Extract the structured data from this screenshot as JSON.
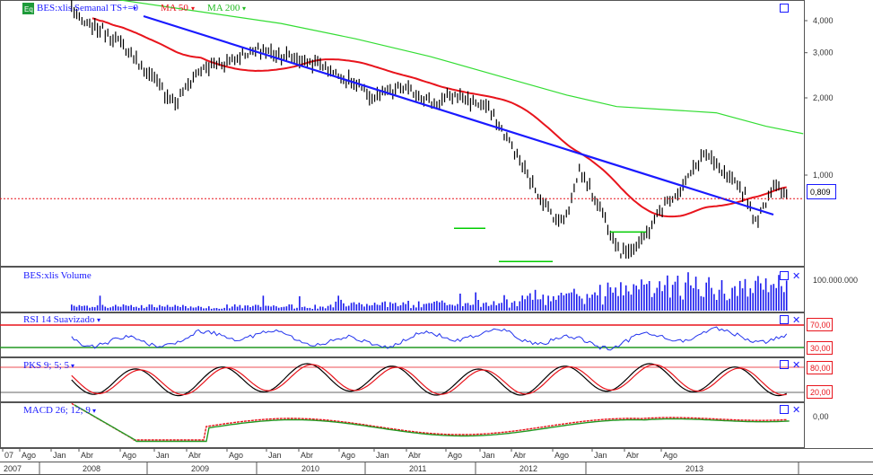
{
  "badge": {
    "label": "Eq"
  },
  "main_panel": {
    "title": "BES:xlis Semanal TS+=0",
    "ma50_label": "MA 50",
    "ma200_label": "MA 200",
    "current_price_label": "0,809",
    "y_ticks": [
      "4,000",
      "3,000",
      "2,000",
      "1,000"
    ]
  },
  "volume_panel": {
    "title": "BES:xlis Volume",
    "y_tick": "100.000.000"
  },
  "rsi_panel": {
    "title": "RSI 14 Suavizado",
    "upper_level_label": "70,00",
    "lower_level_label": "30,00"
  },
  "pks_panel": {
    "title": "PKS 9; 5; 5",
    "upper_level_label": "80,00",
    "lower_level_label": "20,00"
  },
  "macd_panel": {
    "title": "MACD 26; 12; 9",
    "zero_label": "0,00"
  },
  "time_axis": {
    "month_labels": [
      "07",
      "Ago",
      "Jan",
      "Abr",
      "Ago",
      "Jan",
      "Abr",
      "Ago",
      "Jan",
      "Abr",
      "Ago",
      "Jan",
      "Abr",
      "Ago",
      "Jan",
      "Abr",
      "Ago",
      "Jan",
      "Abr",
      "Ago"
    ],
    "year_labels": [
      "2007",
      "2008",
      "2009",
      "2010",
      "2011",
      "2012",
      "2013"
    ]
  },
  "colors": {
    "price": "#000000",
    "ma50": "#e8141c",
    "ma200": "#33dd33",
    "trendline": "#1a1aff",
    "volume": "#1a1aee",
    "rsi": "#2233ee",
    "support": "#00cc00",
    "level_red": "#e8141c",
    "pks_fast": "#000000",
    "pks_slow": "#e8141c",
    "macd_a": "#e8141c",
    "macd_b": "#229922",
    "panel_button": "#1a1aff"
  },
  "chart_data": {
    "type": "line",
    "title": "BES:xlis Semanal",
    "y_scale": "log",
    "ylim": [
      0.45,
      5.0
    ],
    "x_range": [
      "2007-07",
      "2013-12"
    ],
    "price_keypoints": [
      {
        "x": "2007-12",
        "y": 4.6
      },
      {
        "x": "2008-01",
        "y": 3.9
      },
      {
        "x": "2008-03",
        "y": 3.7
      },
      {
        "x": "2008-05",
        "y": 3.2
      },
      {
        "x": "2008-10",
        "y": 1.9
      },
      {
        "x": "2008-12",
        "y": 2.5
      },
      {
        "x": "2009-03",
        "y": 2.8
      },
      {
        "x": "2009-06",
        "y": 3.1
      },
      {
        "x": "2009-09",
        "y": 2.9
      },
      {
        "x": "2009-12",
        "y": 2.7
      },
      {
        "x": "2010-03",
        "y": 2.3
      },
      {
        "x": "2010-05",
        "y": 2.0
      },
      {
        "x": "2010-08",
        "y": 2.2
      },
      {
        "x": "2010-11",
        "y": 1.9
      },
      {
        "x": "2011-01",
        "y": 2.05
      },
      {
        "x": "2011-04",
        "y": 1.85
      },
      {
        "x": "2011-06",
        "y": 1.4
      },
      {
        "x": "2011-09",
        "y": 0.85
      },
      {
        "x": "2011-11",
        "y": 0.65
      },
      {
        "x": "2011-12",
        "y": 0.75
      },
      {
        "x": "2012-01",
        "y": 1.05
      },
      {
        "x": "2012-03",
        "y": 0.75
      },
      {
        "x": "2012-05",
        "y": 0.5
      },
      {
        "x": "2012-07",
        "y": 0.55
      },
      {
        "x": "2012-09",
        "y": 0.75
      },
      {
        "x": "2012-11",
        "y": 0.9
      },
      {
        "x": "2013-01",
        "y": 1.22
      },
      {
        "x": "2013-03",
        "y": 1.0
      },
      {
        "x": "2013-05",
        "y": 0.85
      },
      {
        "x": "2013-06",
        "y": 0.65
      },
      {
        "x": "2013-08",
        "y": 0.95
      },
      {
        "x": "2013-09",
        "y": 0.809
      }
    ],
    "series": [
      {
        "name": "MA 50"
      },
      {
        "name": "MA 200"
      }
    ],
    "current_price": 0.809,
    "support_levels": [
      0.62,
      0.46,
      0.6
    ],
    "volume_axis_tick": 100000000,
    "rsi_levels": [
      70,
      30
    ],
    "pks_levels": [
      80,
      20
    ],
    "macd_zero": 0
  }
}
